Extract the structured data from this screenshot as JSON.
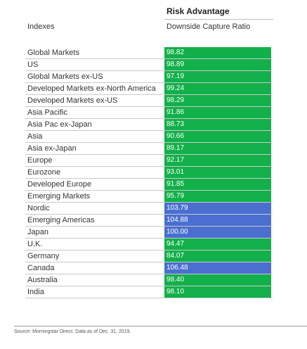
{
  "chart_data": {
    "type": "table",
    "header_top": "Risk Advantage",
    "header_left": "Indexes",
    "header_right": "Downside Capture Ratio",
    "colors": {
      "green": "#12b04a",
      "blue": "#4a6fd1"
    },
    "rows": [
      {
        "label": "Global Markets",
        "value": "98.82",
        "color": "green"
      },
      {
        "label": "US",
        "value": "98.89",
        "color": "green"
      },
      {
        "label": "Global Markets ex-US",
        "value": "97.19",
        "color": "green"
      },
      {
        "label": "Developed Markets ex-North America",
        "value": "99.24",
        "color": "green"
      },
      {
        "label": "Developed Markets ex-US",
        "value": "98.29",
        "color": "green"
      },
      {
        "label": "Asia Pacific",
        "value": "91.86",
        "color": "green"
      },
      {
        "label": "Asia Pac ex-Japan",
        "value": "88.73",
        "color": "green"
      },
      {
        "label": "Asia",
        "value": "90.66",
        "color": "green"
      },
      {
        "label": "Asia ex-Japan",
        "value": "89.17",
        "color": "green"
      },
      {
        "label": "Europe",
        "value": "92.17",
        "color": "green"
      },
      {
        "label": "Eurozone",
        "value": "93.01",
        "color": "green"
      },
      {
        "label": "Developed Europe",
        "value": "91.85",
        "color": "green"
      },
      {
        "label": "Emerging Markets",
        "value": "95.79",
        "color": "green"
      },
      {
        "label": "Nordic",
        "value": "103.79",
        "color": "blue"
      },
      {
        "label": "Emerging Americas",
        "value": "104.88",
        "color": "blue"
      },
      {
        "label": "Japan",
        "value": "100.00",
        "color": "blue"
      },
      {
        "label": "U.K.",
        "value": "94.47",
        "color": "green"
      },
      {
        "label": "Germany",
        "value": "84.07",
        "color": "green"
      },
      {
        "label": "Canada",
        "value": "106.48",
        "color": "blue"
      },
      {
        "label": "Australia",
        "value": "98.40",
        "color": "green"
      },
      {
        "label": "India",
        "value": "98.10",
        "color": "green"
      }
    ],
    "source": "Source: Morningstar Direct. Data as of Dec. 31, 2019."
  }
}
